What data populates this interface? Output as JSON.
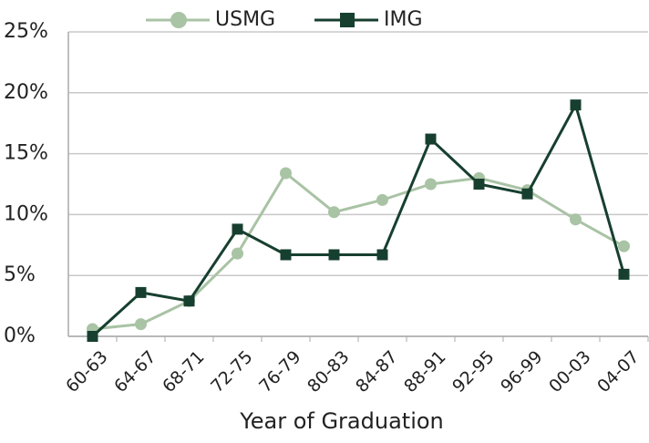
{
  "chart_data": {
    "type": "line",
    "x_label": "Year of Graduation",
    "categories": [
      "60-63",
      "64-67",
      "68-71",
      "72-75",
      "76-79",
      "80-83",
      "84-87",
      "88-91",
      "92-95",
      "96-99",
      "00-03",
      "04-07"
    ],
    "series": [
      {
        "name": "USMG",
        "color": "#a9c3a5",
        "marker": "circle",
        "values": [
          0.6,
          1.0,
          2.9,
          6.8,
          13.4,
          10.2,
          11.2,
          12.5,
          13.0,
          12.0,
          9.6,
          7.4
        ]
      },
      {
        "name": "IMG",
        "color": "#173f2f",
        "marker": "square",
        "values": [
          0,
          3.6,
          2.9,
          8.8,
          6.7,
          6.7,
          6.7,
          16.2,
          12.5,
          11.7,
          19.0,
          5.1
        ]
      }
    ],
    "ylim": [
      0,
      25
    ],
    "yticks": [
      {
        "value": 0,
        "label": "0%"
      },
      {
        "value": 5,
        "label": "5%"
      },
      {
        "value": 10,
        "label": "10%"
      },
      {
        "value": 15,
        "label": "15%"
      },
      {
        "value": 20,
        "label": "20%"
      },
      {
        "value": 25,
        "label": "25%"
      }
    ],
    "grid": true,
    "legend": "top"
  }
}
